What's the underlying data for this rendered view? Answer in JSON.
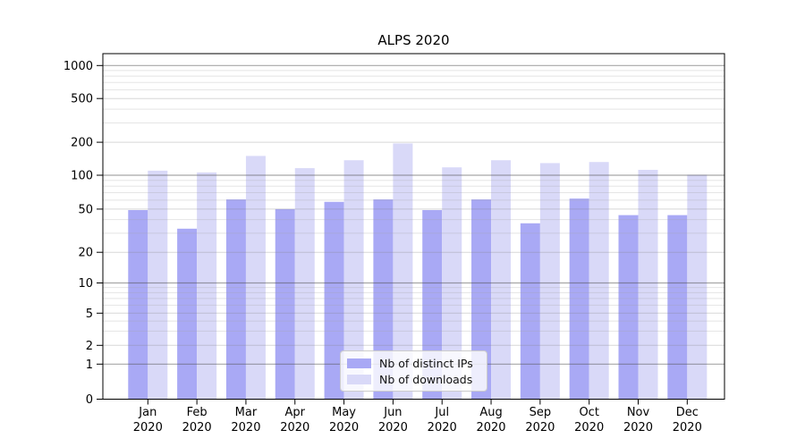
{
  "chart_data": {
    "type": "bar",
    "title": "ALPS 2020",
    "x_tick_labels_line1": [
      "Jan",
      "Feb",
      "Mar",
      "Apr",
      "May",
      "Jun",
      "Jul",
      "Aug",
      "Sep",
      "Oct",
      "Nov",
      "Dec"
    ],
    "x_tick_labels_line2": "2020",
    "y_tick_labels": [
      "0",
      "1",
      "2",
      "5",
      "10",
      "20",
      "50",
      "100",
      "200",
      "500",
      "1000"
    ],
    "y_scale": "symlog",
    "ylim": [
      0,
      1300
    ],
    "grid": true,
    "legend_position": "lower center",
    "series": [
      {
        "name": "Nb of distinct IPs",
        "color": "#a9a9f5",
        "values": [
          49,
          33,
          61,
          50,
          58,
          61,
          49,
          61,
          37,
          62,
          44,
          44
        ]
      },
      {
        "name": "Nb of downloads",
        "color": "#d9d9f8",
        "values": [
          110,
          106,
          150,
          116,
          137,
          195,
          118,
          137,
          129,
          132,
          112,
          101
        ]
      }
    ]
  }
}
